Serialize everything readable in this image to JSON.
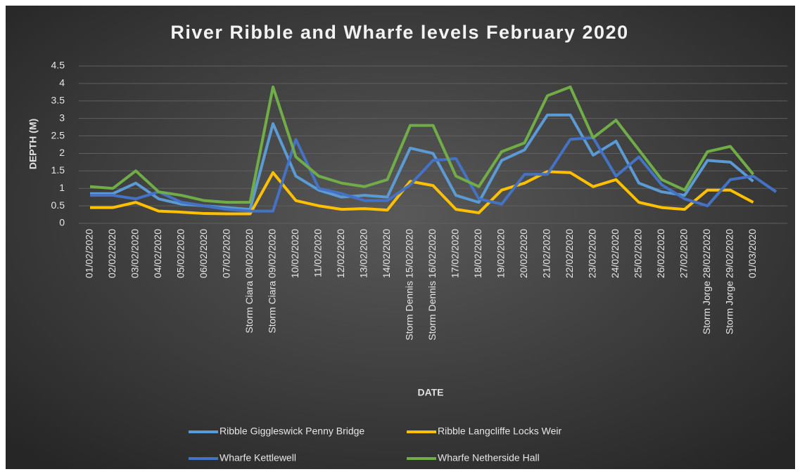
{
  "chart_data": {
    "type": "line",
    "title": "River Ribble and Wharfe levels February 2020",
    "x_label": "DATE",
    "y_label": "DEPTH (M)",
    "categories": [
      "01/02/2020",
      "02/02/2020",
      "03/02/2020",
      "04/02/2020",
      "05/02/2020",
      "06/02/2020",
      "07/02/2020",
      "Storm Ciara 08/02/2020",
      "Storm Ciara 09/02/2020",
      "10/02/2020",
      "11/02/2020",
      "12/02/2020",
      "13/02/2020",
      "14/02/2020",
      "Storm Dennis 15/02/2020",
      "Storm Dennis 16/02/2020",
      "17/02/2020",
      "18/02/2020",
      "19/02/2020",
      "20/02/2020",
      "21/02/2020",
      "22/02/2020",
      "23/02/2020",
      "24/02/2020",
      "25/02/2020",
      "26/02/2020",
      "27/02/2020",
      "Storm Jorge 28/02/2020",
      "Storm Jorge 29/02/2020",
      "01/03/2020",
      null
    ],
    "series": [
      {
        "name": "Ribble Giggleswick Penny Bridge",
        "color": "#5b9bd5",
        "values": [
          0.85,
          0.85,
          1.15,
          0.7,
          0.55,
          0.5,
          0.45,
          0.4,
          2.85,
          1.35,
          0.95,
          0.75,
          0.8,
          0.75,
          2.15,
          2.0,
          0.8,
          0.6,
          1.8,
          2.1,
          3.1,
          3.1,
          1.95,
          2.35,
          1.15,
          0.9,
          0.8,
          1.8,
          1.75,
          1.2,
          null
        ]
      },
      {
        "name": "Ribble Langcliffe Locks Weir",
        "color": "#ffc000",
        "values": [
          0.45,
          0.45,
          0.6,
          0.35,
          0.32,
          0.28,
          0.27,
          0.27,
          1.45,
          0.65,
          0.5,
          0.4,
          0.42,
          0.38,
          1.2,
          1.08,
          0.4,
          0.3,
          0.95,
          1.15,
          1.48,
          1.45,
          1.05,
          1.25,
          0.6,
          0.45,
          0.4,
          0.95,
          0.95,
          0.6,
          null
        ]
      },
      {
        "name": "Wharfe Kettlewell",
        "color": "#4472c4",
        "values": [
          0.8,
          0.8,
          0.7,
          0.9,
          0.6,
          0.5,
          0.4,
          0.35,
          0.35,
          2.4,
          1.0,
          0.85,
          0.65,
          0.65,
          1.1,
          1.8,
          1.85,
          0.7,
          0.55,
          1.4,
          1.4,
          2.4,
          2.45,
          1.35,
          1.9,
          1.1,
          0.7,
          0.5,
          1.25,
          1.35,
          0.9
        ]
      },
      {
        "name": "Wharfe Netherside Hall",
        "color": "#70ad47",
        "values": [
          1.05,
          1.0,
          1.5,
          0.9,
          0.8,
          0.65,
          0.6,
          0.6,
          3.9,
          1.9,
          1.35,
          1.15,
          1.05,
          1.25,
          2.8,
          2.8,
          1.35,
          1.05,
          2.05,
          2.3,
          3.65,
          3.9,
          2.45,
          2.95,
          2.1,
          1.25,
          0.95,
          2.05,
          2.2,
          1.4,
          null
        ]
      }
    ],
    "ylim": [
      0,
      4.5
    ],
    "yticks": [
      0,
      0.5,
      1,
      1.5,
      2,
      2.5,
      3,
      3.5,
      4,
      4.5
    ],
    "grid": true,
    "legend": "bottom"
  }
}
